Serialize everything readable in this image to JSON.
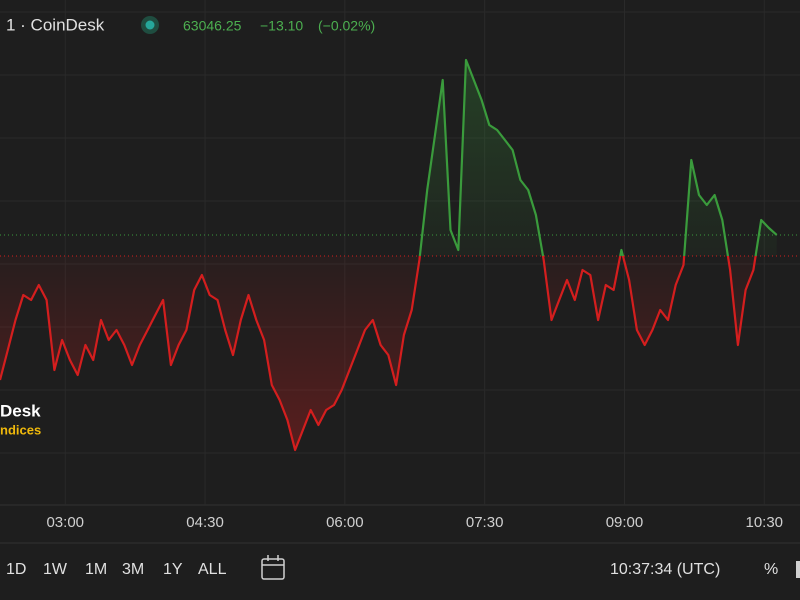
{
  "header": {
    "title": "1 · CoinDesk",
    "price": "63046.25",
    "change": "−13.10",
    "change_pct": "(−0.02%)"
  },
  "watermark": {
    "line1": "Desk",
    "line2": "ndices"
  },
  "toolbar": {
    "ranges": [
      "1D",
      "1W",
      "1M",
      "3M",
      "1Y",
      "ALL"
    ],
    "clock": "10:37:34 (UTC)",
    "percent": "%"
  },
  "chart_data": {
    "type": "line",
    "x": [
      "02:18",
      "02:23",
      "02:28",
      "02:33",
      "02:38",
      "02:43",
      "02:48",
      "02:53",
      "02:58",
      "03:03",
      "03:08",
      "03:13",
      "03:18",
      "03:23",
      "03:28",
      "03:33",
      "03:38",
      "03:43",
      "03:48",
      "03:53",
      "03:58",
      "04:03",
      "04:08",
      "04:13",
      "04:18",
      "04:23",
      "04:28",
      "04:33",
      "04:38",
      "04:43",
      "04:48",
      "04:53",
      "04:58",
      "05:03",
      "05:08",
      "05:13",
      "05:18",
      "05:23",
      "05:28",
      "05:33",
      "05:38",
      "05:43",
      "05:48",
      "05:53",
      "05:58",
      "06:03",
      "06:08",
      "06:13",
      "06:18",
      "06:23",
      "06:28",
      "06:33",
      "06:38",
      "06:43",
      "06:48",
      "06:53",
      "06:58",
      "07:03",
      "07:08",
      "07:13",
      "07:18",
      "07:23",
      "07:28",
      "07:33",
      "07:38",
      "07:43",
      "07:48",
      "07:53",
      "07:58",
      "08:03",
      "08:08",
      "08:13",
      "08:18",
      "08:23",
      "08:28",
      "08:33",
      "08:38",
      "08:43",
      "08:48",
      "08:53",
      "08:58",
      "09:03",
      "09:08",
      "09:13",
      "09:18",
      "09:23",
      "09:28",
      "09:33",
      "09:38",
      "09:43",
      "09:48",
      "09:53",
      "09:58",
      "10:03",
      "10:08",
      "10:13",
      "10:18",
      "10:23",
      "10:28",
      "10:33",
      "10:38"
    ],
    "values": [
      62466,
      62586,
      62706,
      62806,
      62786,
      62846,
      62786,
      62506,
      62626,
      62546,
      62486,
      62606,
      62546,
      62706,
      62626,
      62666,
      62606,
      62526,
      62606,
      62666,
      62726,
      62786,
      62526,
      62606,
      62666,
      62826,
      62886,
      62806,
      62786,
      62666,
      62566,
      62706,
      62806,
      62706,
      62626,
      62446,
      62386,
      62306,
      62186,
      62266,
      62346,
      62286,
      62346,
      62366,
      62426,
      62506,
      62586,
      62666,
      62706,
      62606,
      62566,
      62446,
      62646,
      62746,
      62946,
      63226,
      63446,
      63666,
      63066,
      62986,
      63746,
      63666,
      63586,
      63486,
      63466,
      63426,
      63386,
      63266,
      63226,
      63126,
      62946,
      62706,
      62786,
      62866,
      62786,
      62906,
      62886,
      62706,
      62846,
      62826,
      62986,
      62866,
      62666,
      62606,
      62666,
      62746,
      62706,
      62846,
      62926,
      63346,
      63206,
      63166,
      63206,
      63106,
      62906,
      62606,
      62826,
      62906,
      63106,
      63074,
      63046.25
    ],
    "baseline": 62962,
    "xlim": [
      "02:18",
      "10:53"
    ],
    "ylim": [
      61966,
      63986
    ],
    "xticks": [
      "03:00",
      "04:30",
      "06:00",
      "07:30",
      "09:00",
      "10:30"
    ],
    "up_color": "#3a9b3c",
    "down_color": "#d41e1e",
    "grid": true
  }
}
